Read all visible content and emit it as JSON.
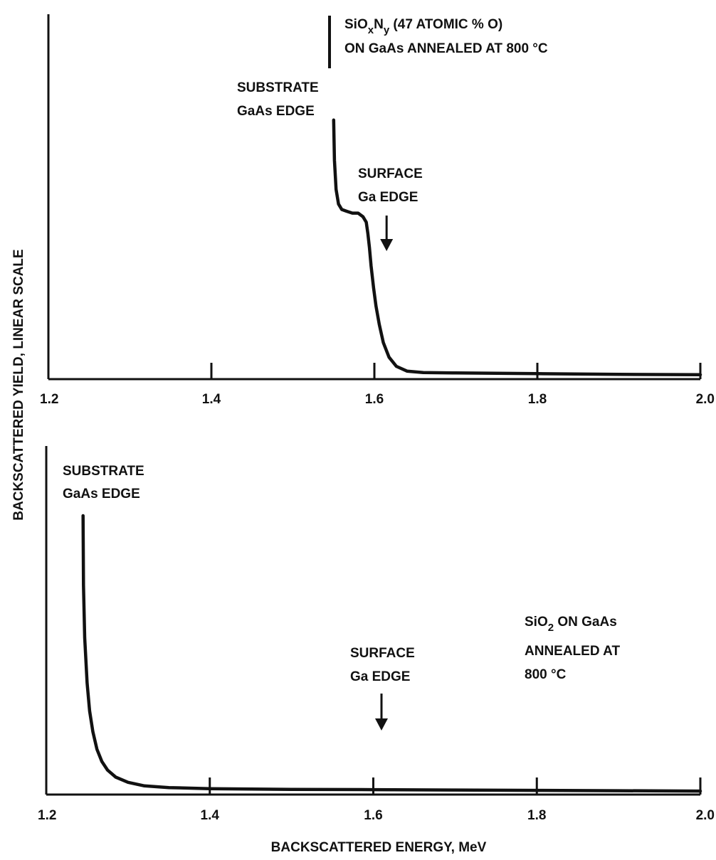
{
  "chart_data": [
    {
      "type": "line",
      "title": "",
      "xlim": [
        1.2,
        2.0
      ],
      "ylim": [
        0,
        1
      ],
      "x_ticks": [
        "1.2",
        "1.4",
        "1.6",
        "1.8",
        "2.0"
      ],
      "series": [
        {
          "x": [
            1.55,
            1.551,
            1.553,
            1.556,
            1.56,
            1.566,
            1.573,
            1.58,
            1.586,
            1.59,
            1.592,
            1.594,
            1.596,
            1.599,
            1.602,
            1.606,
            1.611,
            1.618,
            1.627,
            1.64,
            1.66,
            1.7,
            1.75,
            1.8,
            1.9,
            2.0
          ],
          "y": [
            0.71,
            0.6,
            0.52,
            0.48,
            0.465,
            0.46,
            0.455,
            0.455,
            0.445,
            0.43,
            0.4,
            0.36,
            0.31,
            0.25,
            0.2,
            0.15,
            0.1,
            0.06,
            0.035,
            0.022,
            0.018,
            0.017,
            0.016,
            0.015,
            0.013,
            0.012
          ]
        }
      ],
      "annotations": {
        "sample_line1_pre": "SiO",
        "sample_line1_sub1": "x",
        "sample_line1_mid": "N",
        "sample_line1_sub2": "y",
        "sample_line1_post": " (47 ATOMIC % O)",
        "sample_line2": "ON GaAs ANNEALED AT 800 °C",
        "substrate_line1": "SUBSTRATE",
        "substrate_line2": "GaAs EDGE",
        "surface_line1": "SURFACE",
        "surface_line2": "Ga EDGE",
        "surface_edge_x": 1.615
      }
    },
    {
      "type": "line",
      "title": "",
      "xlim": [
        1.2,
        2.0
      ],
      "ylim": [
        0,
        1
      ],
      "x_ticks": [
        "1.2",
        "1.4",
        "1.6",
        "1.8",
        "2.0"
      ],
      "series": [
        {
          "x": [
            1.245,
            1.2455,
            1.247,
            1.25,
            1.253,
            1.257,
            1.262,
            1.268,
            1.275,
            1.285,
            1.3,
            1.32,
            1.35,
            1.4,
            1.5,
            1.6,
            1.7,
            1.8,
            1.9,
            2.0
          ],
          "y": [
            0.8,
            0.6,
            0.45,
            0.32,
            0.24,
            0.18,
            0.13,
            0.095,
            0.07,
            0.05,
            0.035,
            0.025,
            0.02,
            0.017,
            0.015,
            0.014,
            0.013,
            0.012,
            0.011,
            0.01
          ]
        }
      ],
      "annotations": {
        "substrate_line1": "SUBSTRATE",
        "substrate_line2": "GaAs EDGE",
        "surface_line1": "SURFACE",
        "surface_line2": "Ga EDGE",
        "surface_edge_x": 1.61,
        "sample_line1_pre": "SiO",
        "sample_line1_sub": "2",
        "sample_line1_post": " ON GaAs",
        "sample_line2": "ANNEALED AT",
        "sample_line3": "800 °C"
      }
    }
  ],
  "ylabel": "BACKSCATTERED YIELD, LINEAR SCALE",
  "xlabel": "BACKSCATTERED ENERGY, MeV"
}
